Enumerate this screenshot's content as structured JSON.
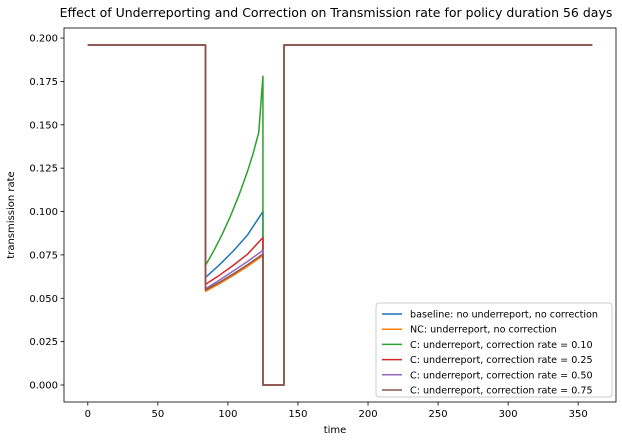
{
  "chart_data": {
    "type": "line",
    "title": "Effect of Underreporting and Correction on Transmission rate for policy duration 56 days",
    "xlabel": "time",
    "ylabel": "transmission rate",
    "xlim": [
      -17,
      377
    ],
    "ylim": [
      -0.0098,
      0.2058
    ],
    "grid": false,
    "legend_position": "lower-right",
    "x_ticks": [
      {
        "value": 0,
        "label": "0"
      },
      {
        "value": 50,
        "label": "50"
      },
      {
        "value": 100,
        "label": "100"
      },
      {
        "value": 150,
        "label": "150"
      },
      {
        "value": 200,
        "label": "200"
      },
      {
        "value": 250,
        "label": "250"
      },
      {
        "value": 300,
        "label": "300"
      },
      {
        "value": 350,
        "label": "350"
      }
    ],
    "y_ticks": [
      {
        "value": 0.0,
        "label": "0.000"
      },
      {
        "value": 0.025,
        "label": "0.025"
      },
      {
        "value": 0.05,
        "label": "0.050"
      },
      {
        "value": 0.075,
        "label": "0.075"
      },
      {
        "value": 0.1,
        "label": "0.100"
      },
      {
        "value": 0.125,
        "label": "0.125"
      },
      {
        "value": 0.15,
        "label": "0.150"
      },
      {
        "value": 0.175,
        "label": "0.175"
      },
      {
        "value": 0.2,
        "label": "0.200"
      }
    ],
    "series": [
      {
        "name": "baseline: no underreport, no correction",
        "color": "#1f77b4",
        "points": [
          [
            0,
            0.196
          ],
          [
            84,
            0.196
          ],
          [
            84,
            0.062
          ],
          [
            94,
            0.0693
          ],
          [
            104,
            0.0774
          ],
          [
            114,
            0.0865
          ],
          [
            125,
            0.1
          ],
          [
            125,
            0
          ],
          [
            140,
            0
          ],
          [
            140,
            0.196
          ],
          [
            360,
            0.196
          ]
        ]
      },
      {
        "name": "NC: underreport, no correction",
        "color": "#ff7f0e",
        "points": [
          [
            0,
            0.196
          ],
          [
            84,
            0.196
          ],
          [
            84,
            0.054
          ],
          [
            94,
            0.0584
          ],
          [
            104,
            0.0632
          ],
          [
            114,
            0.0684
          ],
          [
            125,
            0.0746
          ],
          [
            125,
            0
          ],
          [
            140,
            0
          ],
          [
            140,
            0.196
          ],
          [
            360,
            0.196
          ]
        ]
      },
      {
        "name": "C: underreport, correction rate = 0.10",
        "color": "#2ca02c",
        "points": [
          [
            0,
            0.196
          ],
          [
            84,
            0.196
          ],
          [
            84,
            0.069
          ],
          [
            90,
            0.0775
          ],
          [
            96,
            0.087
          ],
          [
            102,
            0.0977
          ],
          [
            108,
            0.1097
          ],
          [
            114,
            0.1232
          ],
          [
            118,
            0.1335
          ],
          [
            122,
            0.1456
          ],
          [
            125,
            0.178
          ],
          [
            125,
            0
          ],
          [
            140,
            0
          ],
          [
            140,
            0.196
          ],
          [
            360,
            0.196
          ]
        ]
      },
      {
        "name": "C: underreport, correction rate = 0.25",
        "color": "#d62728",
        "points": [
          [
            0,
            0.196
          ],
          [
            84,
            0.196
          ],
          [
            84,
            0.058
          ],
          [
            94,
            0.0633
          ],
          [
            104,
            0.0691
          ],
          [
            114,
            0.0754
          ],
          [
            125,
            0.085
          ],
          [
            125,
            0
          ],
          [
            140,
            0
          ],
          [
            140,
            0.196
          ],
          [
            360,
            0.196
          ]
        ]
      },
      {
        "name": "C: underreport, correction rate = 0.50",
        "color": "#9467bd",
        "points": [
          [
            0,
            0.196
          ],
          [
            84,
            0.196
          ],
          [
            84,
            0.0555
          ],
          [
            94,
            0.0605
          ],
          [
            104,
            0.0658
          ],
          [
            114,
            0.0712
          ],
          [
            125,
            0.0776
          ],
          [
            125,
            0
          ],
          [
            140,
            0
          ],
          [
            140,
            0.196
          ],
          [
            360,
            0.196
          ]
        ]
      },
      {
        "name": "C: underreport, correction rate = 0.75",
        "color": "#8c564b",
        "points": [
          [
            0,
            0.196
          ],
          [
            84,
            0.196
          ],
          [
            84,
            0.0548
          ],
          [
            94,
            0.0592
          ],
          [
            104,
            0.0641
          ],
          [
            114,
            0.0693
          ],
          [
            125,
            0.0755
          ],
          [
            125,
            0
          ],
          [
            140,
            0
          ],
          [
            140,
            0.196
          ],
          [
            360,
            0.196
          ]
        ]
      }
    ]
  }
}
